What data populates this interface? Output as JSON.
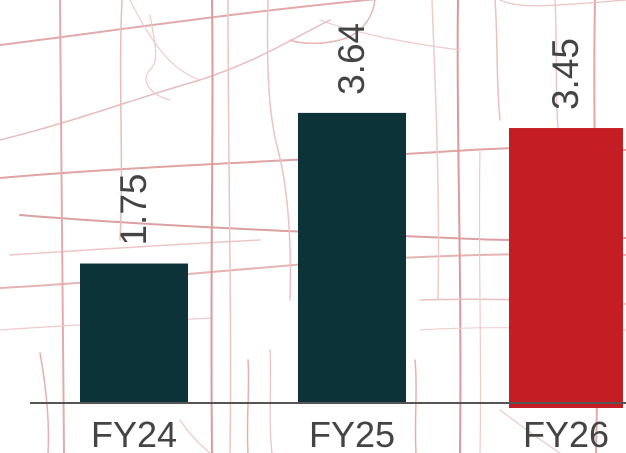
{
  "chart_data": {
    "type": "bar",
    "categories": [
      "FY24",
      "FY25",
      "FY26"
    ],
    "values": [
      1.75,
      3.64,
      3.45
    ],
    "value_labels": [
      "1.75",
      "3.64",
      "3.45"
    ],
    "colors": [
      "#0b3338",
      "#0b3338",
      "#c41e24"
    ],
    "ylim": [
      0,
      4
    ],
    "title": "",
    "xlabel": "",
    "ylabel": "",
    "grid": false,
    "legend": "none",
    "background": "faint red street-map line pattern"
  }
}
